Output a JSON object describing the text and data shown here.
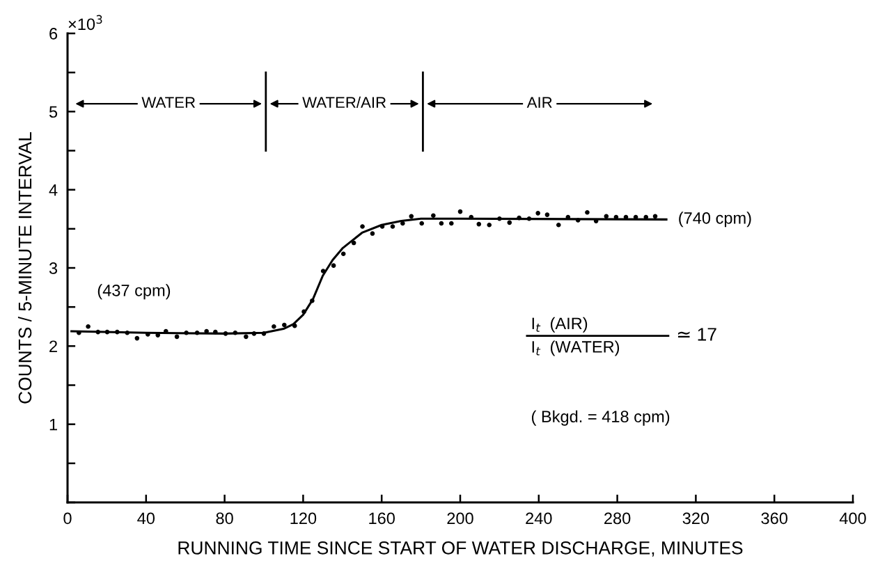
{
  "chart_data": {
    "type": "scatter",
    "xlabel": "RUNNING TIME SINCE START OF WATER DISCHARGE, MINUTES",
    "ylabel": "COUNTS / 5-MINUTE INTERVAL",
    "xlim": [
      0,
      400
    ],
    "ylim": [
      0,
      6
    ],
    "xticks": [
      0,
      40,
      80,
      120,
      160,
      200,
      240,
      280,
      320,
      360,
      400
    ],
    "yticks": [
      {
        "value": 0,
        "label": null
      },
      {
        "value": 0.5,
        "label": null
      },
      1,
      {
        "value": 1.5,
        "label": null
      },
      2,
      {
        "value": 2.5,
        "label": null
      },
      3,
      {
        "value": 3.5,
        "label": null
      },
      4,
      {
        "value": 4.5,
        "label": null
      },
      5,
      {
        "value": 5.5,
        "label": null
      },
      6
    ],
    "grid": false,
    "legend": false,
    "series": [
      {
        "color": "#000000",
        "marker": "circle",
        "x": [
          5.8,
          10.5,
          15.5,
          20.2,
          25.3,
          30.4,
          35.4,
          40.9,
          46,
          50.1,
          55.7,
          60.5,
          66,
          70.8,
          75.3,
          80.5,
          85.4,
          90.9,
          95,
          100,
          105.1,
          110.4,
          115.7,
          120.4,
          124.6,
          130.2,
          135.5,
          140.5,
          145.8,
          150.2,
          155.3,
          160.3,
          165.6,
          170.7,
          175.1,
          180.4,
          186.3,
          190.4,
          195.5,
          200,
          205.6,
          209.5,
          214.8,
          220,
          225.1,
          230,
          235.1,
          239.6,
          244.3,
          250.1,
          254.9,
          260,
          264.7,
          269.2,
          274.4,
          279.4,
          284.4,
          289.4,
          294.6,
          299.3
        ],
        "values": [
          2.17,
          2.25,
          2.18,
          2.18,
          2.18,
          2.17,
          2.1,
          2.15,
          2.14,
          2.19,
          2.12,
          2.17,
          2.17,
          2.19,
          2.18,
          2.16,
          2.17,
          2.12,
          2.16,
          2.16,
          2.25,
          2.27,
          2.26,
          2.44,
          2.58,
          2.96,
          3.03,
          3.18,
          3.32,
          3.53,
          3.44,
          3.53,
          3.53,
          3.57,
          3.66,
          3.57,
          3.67,
          3.57,
          3.57,
          3.72,
          3.65,
          3.56,
          3.55,
          3.63,
          3.58,
          3.64,
          3.63,
          3.7,
          3.68,
          3.55,
          3.65,
          3.61,
          3.71,
          3.6,
          3.66,
          3.65,
          3.65,
          3.65,
          3.65,
          3.66
        ]
      },
      {
        "type": "line",
        "color": "#000000",
        "marker": "none",
        "line_style": "solid",
        "x": [
          2,
          40,
          80,
          100,
          110,
          115,
          120,
          125,
          130,
          135,
          140,
          150,
          160,
          170,
          180,
          200,
          305
        ],
        "values": [
          2.19,
          2.17,
          2.16,
          2.17,
          2.22,
          2.28,
          2.4,
          2.6,
          2.9,
          3.1,
          3.25,
          3.45,
          3.55,
          3.6,
          3.63,
          3.63,
          3.62
        ]
      }
    ],
    "ref_lines": [
      {
        "axis": "x",
        "value": 101
      },
      {
        "axis": "x",
        "value": 181
      }
    ],
    "annotations": [
      "×10$^{3}$",
      "WATER",
      "WATER/AIR",
      "AIR",
      {
        "text": "(437 cpm)",
        "x": 15,
        "y": 2.2
      },
      {
        "text": "(740 cpm)",
        "x": 305,
        "y": 3.62
      },
      "I$_{t}$  (AIR)",
      "I$_{t}$  (WATER)",
      "≃ 17",
      "( Bkgd. = 418 cpm)"
    ]
  }
}
